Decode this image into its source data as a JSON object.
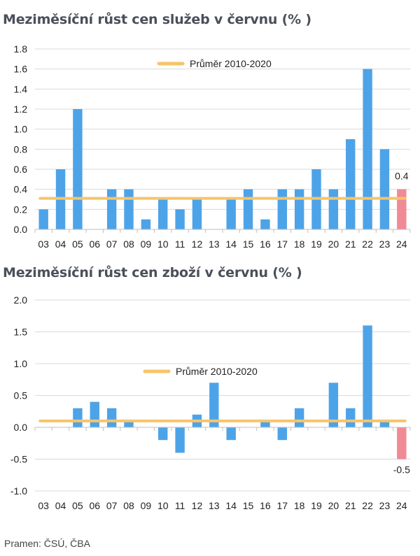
{
  "colors": {
    "bar": "#4da3e8",
    "highlight": "#f08a95",
    "average": "#f6c46b",
    "grid": "#d9d9d9",
    "axis": "#bfbfbf"
  },
  "source": "Pramen: ČSÚ, ČBA",
  "chart_data": [
    {
      "type": "bar",
      "title": "Meziměsíční růst cen služeb v červnu (% )",
      "categories": [
        "03",
        "04",
        "05",
        "06",
        "07",
        "08",
        "09",
        "10",
        "11",
        "12",
        "13",
        "14",
        "15",
        "16",
        "17",
        "18",
        "19",
        "20",
        "21",
        "22",
        "23",
        "24"
      ],
      "values": [
        0.2,
        0.6,
        1.2,
        0.0,
        0.4,
        0.4,
        0.1,
        0.3,
        0.2,
        0.3,
        0.0,
        0.3,
        0.4,
        0.1,
        0.4,
        0.4,
        0.6,
        0.4,
        0.9,
        1.6,
        0.8,
        0.4
      ],
      "highlight_index": 21,
      "data_label": "0.4",
      "average": {
        "label": "Průměr 2010-2020",
        "value": 0.31
      },
      "y_ticks": [
        "0.0",
        "0.2",
        "0.4",
        "0.6",
        "0.8",
        "1.0",
        "1.2",
        "1.4",
        "1.6",
        "1.8"
      ],
      "ylim": [
        0,
        1.8
      ],
      "legend": "top-center"
    },
    {
      "type": "bar",
      "title": "Meziměsíční růst cen zboží v červnu (% )",
      "categories": [
        "03",
        "04",
        "05",
        "06",
        "07",
        "08",
        "09",
        "10",
        "11",
        "12",
        "13",
        "14",
        "15",
        "16",
        "17",
        "18",
        "19",
        "20",
        "21",
        "22",
        "23",
        "24"
      ],
      "values": [
        0.0,
        0.0,
        0.3,
        0.4,
        0.3,
        0.1,
        0.0,
        -0.2,
        -0.4,
        0.2,
        0.7,
        -0.2,
        0.0,
        0.1,
        -0.2,
        0.3,
        0.0,
        0.7,
        0.3,
        1.6,
        0.1,
        -0.5
      ],
      "highlight_index": 21,
      "data_label": "-0.5",
      "average": {
        "label": "Průměr 2010-2020",
        "value": 0.1
      },
      "y_ticks": [
        "-1.0",
        "-0.5",
        "0.0",
        "0.5",
        "1.0",
        "1.5",
        "2.0"
      ],
      "ylim": [
        -1.0,
        2.0
      ],
      "legend": "top-center"
    }
  ]
}
